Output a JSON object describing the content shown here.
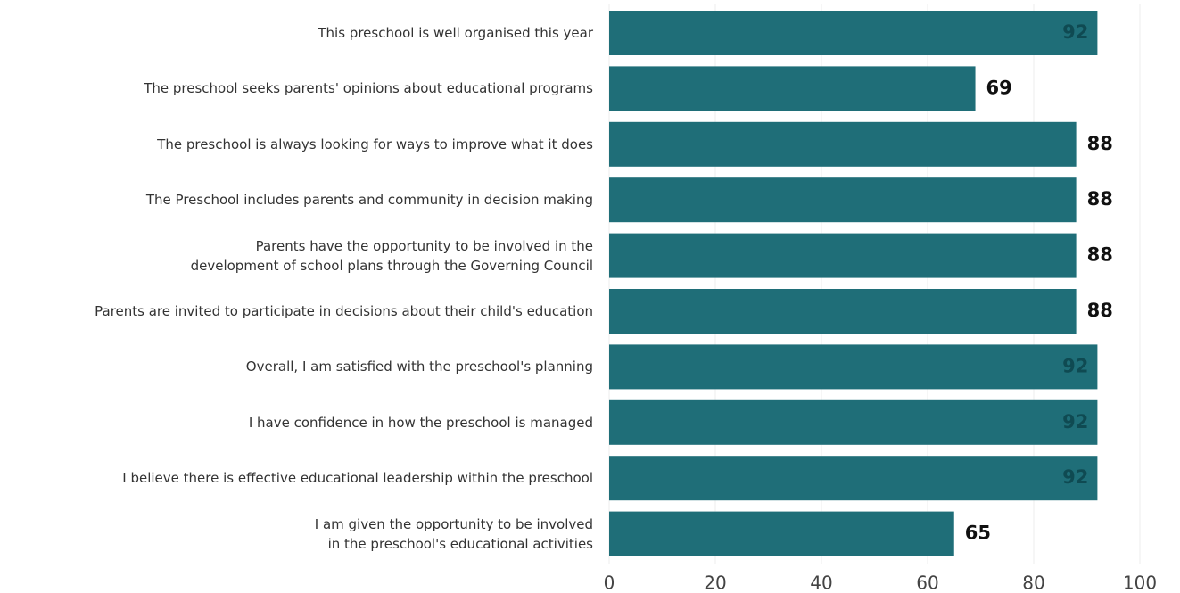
{
  "chart_data": {
    "type": "bar",
    "orientation": "horizontal",
    "categories": [
      "This preschool is well organised this year",
      "The preschool seeks parents' opinions about educational programs",
      "The preschool is always looking for ways to improve what it does",
      "The Preschool includes parents and community in decision making",
      "Parents have the opportunity to be involved in the\ndevelopment of school plans through the Governing Council",
      "Parents are invited to participate in decisions about their child's education",
      "Overall, I am satisfied with the preschool's planning",
      "I have confidence in how the preschool is managed",
      "I believe there is effective educational leadership within the preschool",
      "I am given the opportunity to be involved\nin the preschool's educational activities"
    ],
    "values": [
      92,
      69,
      88,
      88,
      88,
      88,
      92,
      92,
      92,
      65
    ],
    "color": "#1f6e78",
    "xlim": [
      0,
      100
    ],
    "xticks": [
      0,
      20,
      40,
      60,
      80,
      100
    ],
    "grid": true
  }
}
